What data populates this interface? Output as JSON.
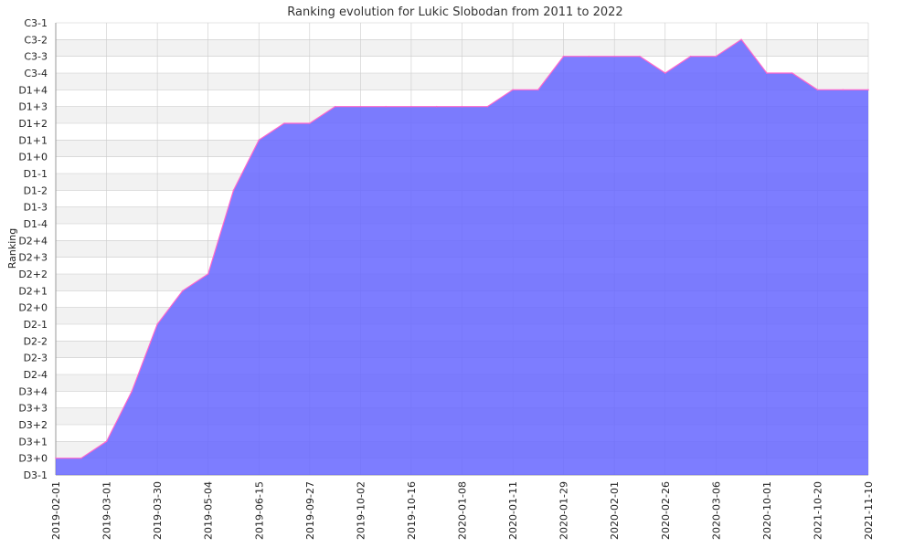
{
  "chart_data": {
    "type": "area",
    "title": "Ranking evolution for Lukic Slobodan from 2011 to 2022",
    "xlabel": "",
    "ylabel": "Ranking",
    "y_categories": [
      "D3-1",
      "D3+0",
      "D3+1",
      "D3+2",
      "D3+3",
      "D3+4",
      "D2-4",
      "D2-3",
      "D2-2",
      "D2-1",
      "D2+0",
      "D2+1",
      "D2+2",
      "D2+3",
      "D2+4",
      "D1-4",
      "D1-3",
      "D1-2",
      "D1-1",
      "D1+0",
      "D1+1",
      "D1+2",
      "D1+3",
      "D1+4",
      "C3-4",
      "C3-3",
      "C3-2",
      "C3-1"
    ],
    "x_tick_labels": [
      "2019-02-01",
      "2019-03-01",
      "2019-03-30",
      "2019-05-04",
      "2019-06-15",
      "2019-09-27",
      "2019-10-02",
      "2019-10-16",
      "2020-01-08",
      "2020-01-11",
      "2020-01-29",
      "2020-02-01",
      "2020-02-26",
      "2020-03-06",
      "2020-10-01",
      "2021-10-20",
      "2021-11-10"
    ],
    "series": [
      {
        "values": [
          "D3+0",
          "D3+0",
          "D3+1",
          "D3+4",
          "D2-1",
          "D2+1",
          "D2+2",
          "D1-2",
          "D1+1",
          "D1+2",
          "D1+2",
          "D1+3",
          "D1+3",
          "D1+3",
          "D1+3",
          "D1+3",
          "D1+3",
          "D1+3",
          "D1+4",
          "D1+4",
          "C3-3",
          "C3-3",
          "C3-3",
          "C3-3",
          "C3-4",
          "C3-3",
          "C3-3",
          "C3-2",
          "C3-4",
          "C3-4",
          "D1+4",
          "D1+4",
          "D1+4"
        ]
      }
    ],
    "grid": true,
    "alternating_bands": true,
    "colors": {
      "fill": "#6666ff",
      "line": "#ff66cc",
      "grid": "#cccccc",
      "band": "#f2f2f2",
      "axis": "#999999"
    }
  }
}
